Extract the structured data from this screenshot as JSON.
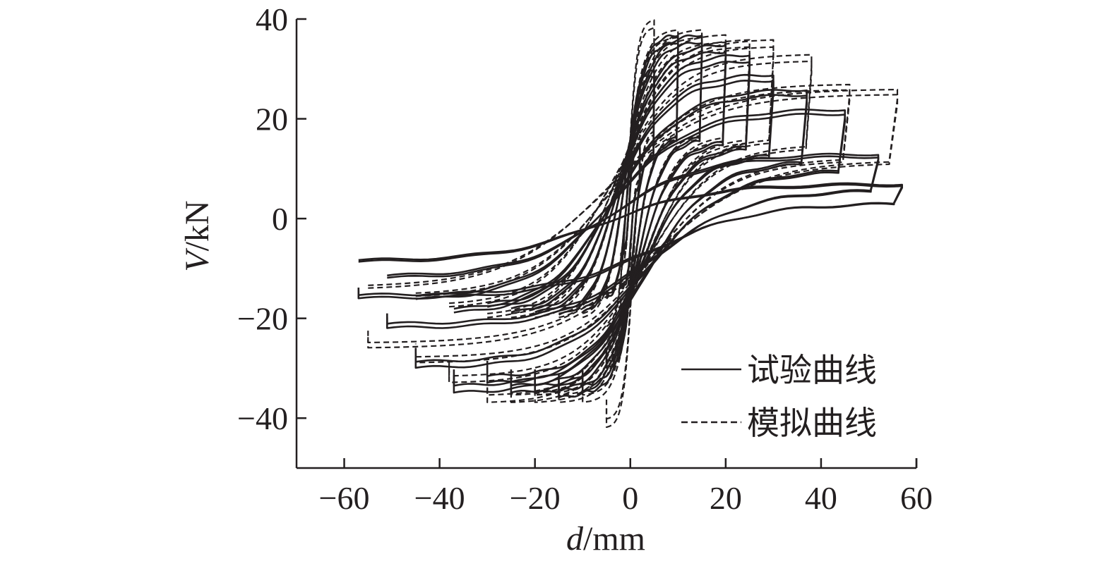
{
  "chart_data": {
    "type": "line",
    "title": "",
    "xlabel": {
      "var": "d",
      "unit": "/mm"
    },
    "ylabel": {
      "var": "V",
      "unit": "/kN"
    },
    "xlim": [
      -70,
      60
    ],
    "ylim": [
      -50,
      40
    ],
    "xticks": [
      -60,
      -40,
      -20,
      0,
      20,
      40,
      60
    ],
    "yticks": [
      -40,
      -20,
      0,
      20,
      40
    ],
    "xtick_labels": [
      "−60",
      "−40",
      "−20",
      "0",
      "20",
      "40",
      "60"
    ],
    "ytick_labels": [
      "−40",
      "−20",
      "0",
      "20",
      "40"
    ],
    "grid": false,
    "legend_position": "bottom-right",
    "series": [
      {
        "name": "试验曲线",
        "line_style": "solid",
        "color": "#231f20",
        "cycle_amplitudes": [
          {
            "dmax": 2,
            "vmax": 15,
            "dmin": -2,
            "vmin": -14
          },
          {
            "dmax": 5,
            "vmax": 30,
            "dmin": -5,
            "vmin": -30
          },
          {
            "dmax": 10,
            "vmax": 37,
            "dmin": -10,
            "vmin": -35
          },
          {
            "dmax": 15,
            "vmax": 37,
            "dmin": -15,
            "vmin": -36
          },
          {
            "dmax": 20,
            "vmax": 35,
            "dmin": -20,
            "vmin": -35
          },
          {
            "dmax": 25,
            "vmax": 33,
            "dmin": -25,
            "vmin": -35
          },
          {
            "dmax": 30,
            "vmax": 29,
            "dmin": -30,
            "vmin": -33
          },
          {
            "dmax": 37,
            "vmax": 26,
            "dmin": -37,
            "vmin": -35
          },
          {
            "dmax": 45,
            "vmax": 22,
            "dmin": -45,
            "vmin": -30
          },
          {
            "dmax": 52,
            "vmax": 13,
            "dmin": -51,
            "vmin": -22
          },
          {
            "dmax": 57,
            "vmax": 7,
            "dmin": -57,
            "vmin": -16
          }
        ]
      },
      {
        "name": "模拟曲线",
        "line_style": "dashed",
        "color": "#231f20",
        "cycle_amplitudes": [
          {
            "dmax": 2,
            "vmax": 18,
            "dmin": -2,
            "vmin": -18
          },
          {
            "dmax": 5,
            "vmax": 40,
            "dmin": -5,
            "vmin": -42
          },
          {
            "dmax": 10,
            "vmax": 38,
            "dmin": -10,
            "vmin": -37
          },
          {
            "dmax": 15,
            "vmax": 38,
            "dmin": -15,
            "vmin": -37
          },
          {
            "dmax": 20,
            "vmax": 37,
            "dmin": -20,
            "vmin": -37
          },
          {
            "dmax": 25,
            "vmax": 36,
            "dmin": -25,
            "vmin": -37
          },
          {
            "dmax": 30,
            "vmax": 36,
            "dmin": -30,
            "vmin": -37
          },
          {
            "dmax": 38,
            "vmax": 33,
            "dmin": -38,
            "vmin": -33
          },
          {
            "dmax": 46,
            "vmax": 27,
            "dmin": -45,
            "vmin": -29
          },
          {
            "dmax": 56,
            "vmax": 26,
            "dmin": -55,
            "vmin": -26
          }
        ]
      }
    ]
  }
}
